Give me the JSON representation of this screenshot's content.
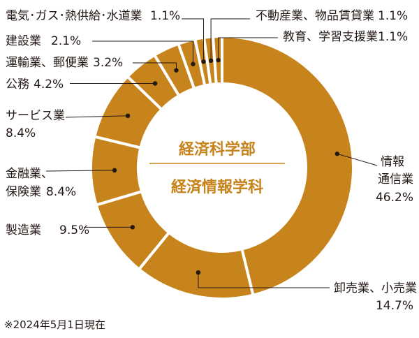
{
  "chart_data": {
    "type": "pie",
    "donut": true,
    "colors": {
      "slice": "#c7831c",
      "separator": "#ffffff",
      "leader": "#231815",
      "center_text": "#c7831c"
    },
    "center_labels": [
      "経済科学部",
      "経済情報学科"
    ],
    "note": "※2024年5月1日現在",
    "slices": [
      {
        "name": "情報通信業",
        "label_lines": [
          "情報",
          "通信業"
        ],
        "value": 46.2,
        "value_label": "46.2%"
      },
      {
        "name": "卸売業、小売業",
        "label_lines": [
          "卸売業、小売業"
        ],
        "value": 14.7,
        "value_label": "14.7%"
      },
      {
        "name": "製造業",
        "label_lines": [
          "製造業"
        ],
        "value": 9.5,
        "value_label": "9.5%"
      },
      {
        "name": "金融業、保険業",
        "label_lines": [
          "金融業、",
          "保険業"
        ],
        "value": 8.4,
        "value_label": "8.4%"
      },
      {
        "name": "サービス業",
        "label_lines": [
          "サービス業"
        ],
        "value": 8.4,
        "value_label": "8.4%"
      },
      {
        "name": "公務",
        "label_lines": [
          "公務"
        ],
        "value": 4.2,
        "value_label": "4.2%"
      },
      {
        "name": "運輸業、郵便業",
        "label_lines": [
          "運輸業、郵便業"
        ],
        "value": 3.2,
        "value_label": "3.2%"
      },
      {
        "name": "建設業",
        "label_lines": [
          "建設業"
        ],
        "value": 2.1,
        "value_label": "2.1%"
      },
      {
        "name": "電気・ガス・熱供給・水道業",
        "label_lines": [
          "電気･ガス･熱供給･水道業"
        ],
        "value": 1.1,
        "value_label": "1.1%"
      },
      {
        "name": "不動産業、物品賃貸業",
        "label_lines": [
          "不動産業、物品賃貸業"
        ],
        "value": 1.1,
        "value_label": "1.1%"
      },
      {
        "name": "教育、学習支援業",
        "label_lines": [
          "教育、学習支援業"
        ],
        "value": 1.1,
        "value_label": "1.1%"
      }
    ]
  }
}
